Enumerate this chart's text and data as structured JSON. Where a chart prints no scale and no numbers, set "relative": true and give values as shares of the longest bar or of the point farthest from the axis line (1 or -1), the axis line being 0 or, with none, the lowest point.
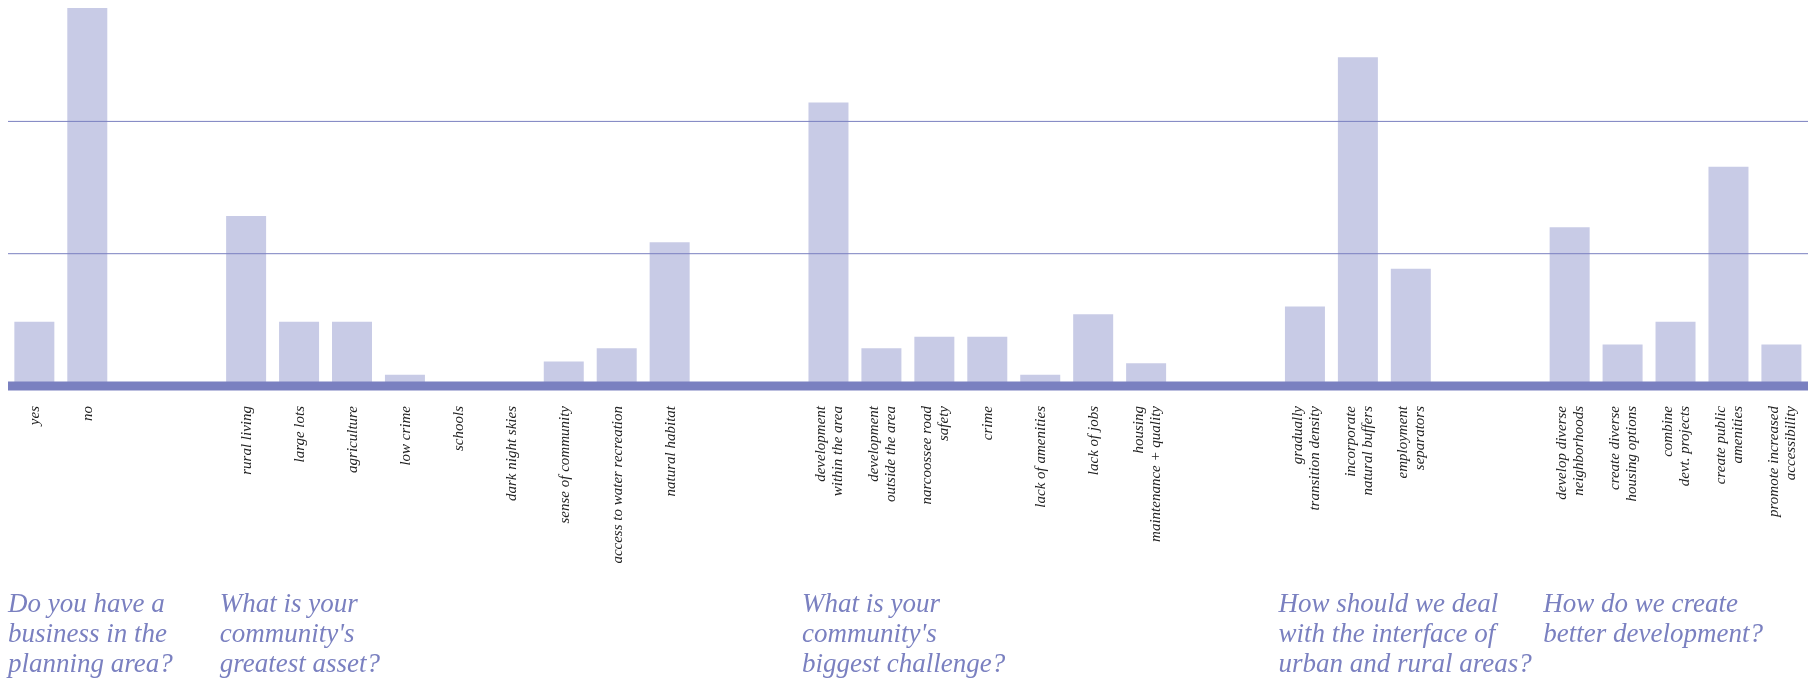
{
  "chart_data": {
    "type": "bar",
    "relative": true,
    "color": "#c8cbe6",
    "ref_lines": [
      {
        "axis": "y",
        "value": 0.35,
        "color": "#7a80c0"
      },
      {
        "axis": "y",
        "value": 0.7,
        "color": "#7a80c0"
      }
    ],
    "categories": [
      "yes",
      "no",
      null,
      null,
      "rural living",
      "large lots",
      "agriculture",
      "low crime",
      "schools",
      "dark night skies",
      "sense of community",
      "access to water recreation",
      "natural habitat",
      null,
      null,
      "development\nwithin the area",
      "development\noutside the area",
      "narcoossee road\nsafety",
      "crime",
      "lack of amenities",
      "lack of jobs",
      "housing\nmaintenance + quality",
      null,
      null,
      "gradually\ntransition density",
      "incorporate\nnatural buffers",
      "employment\nseparators",
      null,
      null,
      "develop diverse\nneighborhoods",
      "create diverse\nhousing options",
      "combine\ndevt. projects",
      "create public\namenities",
      "promote increased\naccessibility"
    ],
    "values": [
      0.17,
      1,
      null,
      null,
      0.45,
      0.17,
      0.17,
      0.03,
      0,
      0,
      0.065,
      0.1,
      0.38,
      null,
      null,
      0.75,
      0.1,
      0.13,
      0.13,
      0.03,
      0.19,
      0.06,
      null,
      null,
      0.21,
      0.87,
      0.31,
      null,
      null,
      0.42,
      0.11,
      0.17,
      0.58,
      0.11
    ],
    "annotations": [
      "Do you have a\nbusiness in the\nplanning area?",
      "What is your\ncommunity's\ngreatest asset?",
      "What is your\ncommunity's\nbiggest challenge?",
      "How should we deal\nwith the interface of\nurban and rural areas?",
      "How do we create\nbetter development?"
    ]
  }
}
